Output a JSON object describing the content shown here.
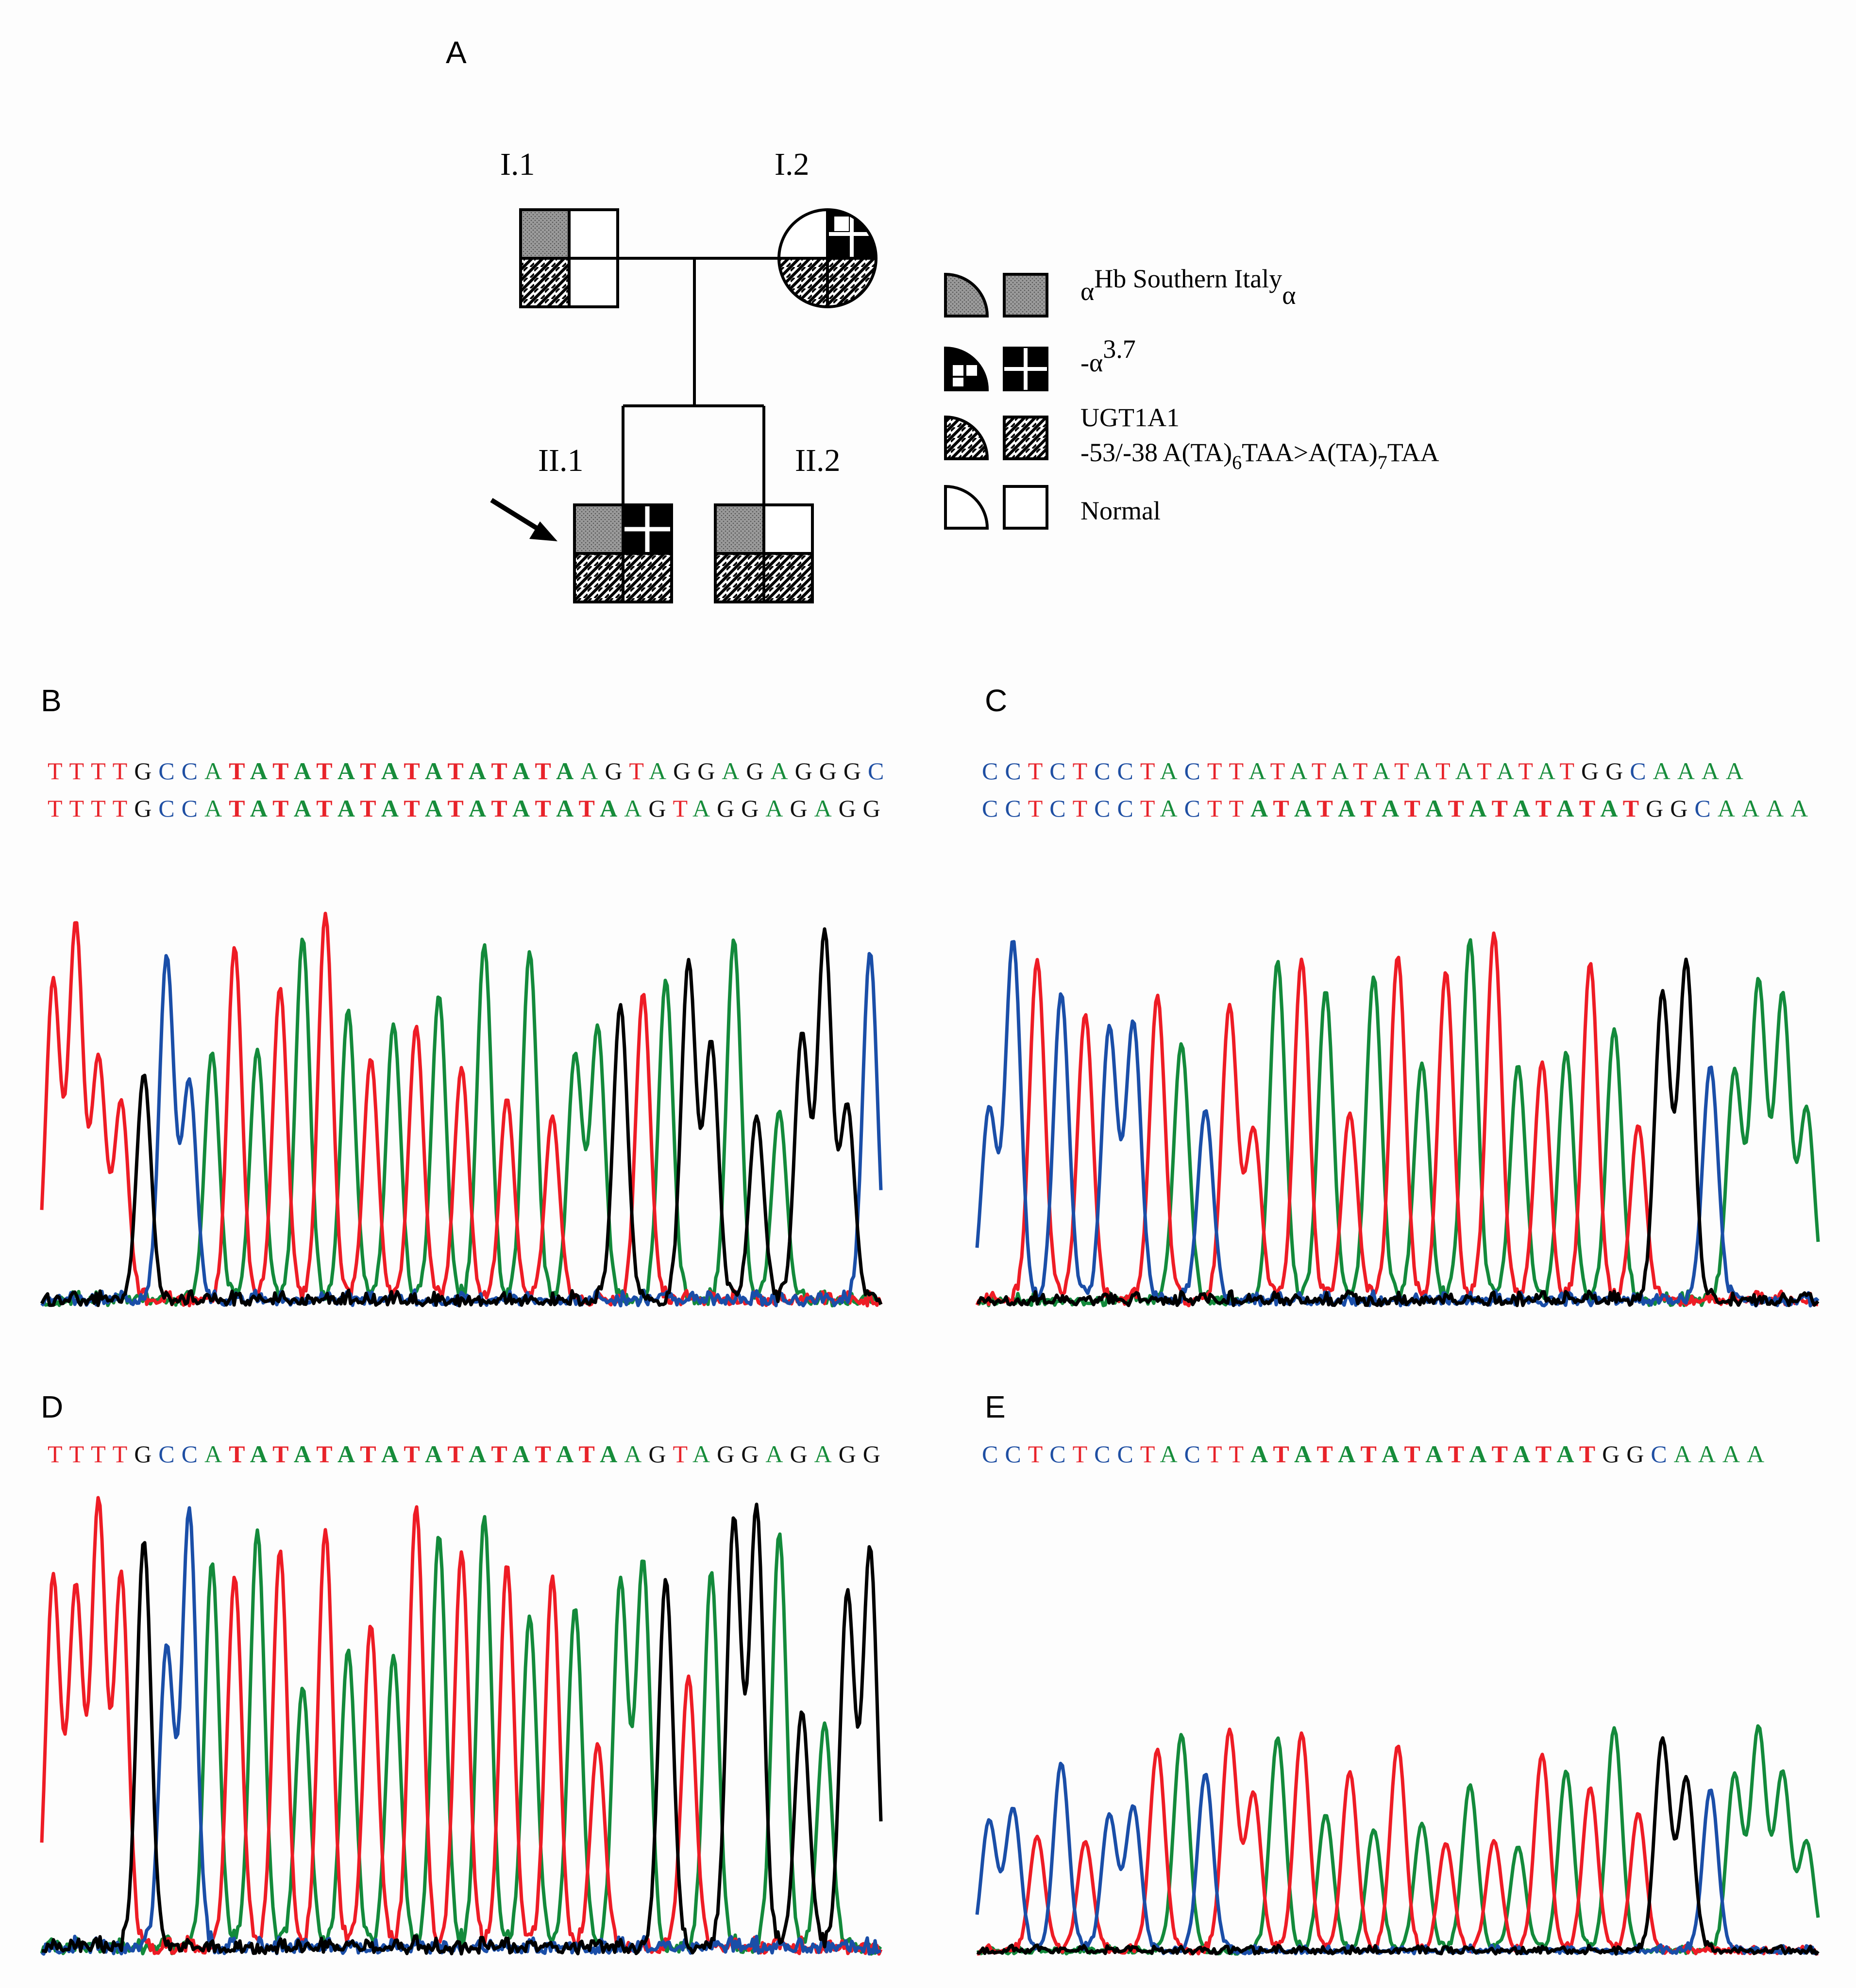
{
  "panels": {
    "a": "A",
    "b": "B",
    "c": "C",
    "d": "D",
    "e": "E"
  },
  "pedigree": {
    "labels": {
      "i1": "I.1",
      "i2": "I.2",
      "ii1": "II.1",
      "ii2": "II.2"
    }
  },
  "legend": {
    "hb_prefix": "α",
    "hb_sup": "Hb Southern Italy",
    "hb_sub": "α",
    "alpha37_prefix": "-α",
    "alpha37_sup": "3.7",
    "ugt_line1": "UGT1A1",
    "ugt_line2_a": "-53/-38 A(TA)",
    "ugt_line2_sub1": "6",
    "ugt_line2_b": "TAA>A(TA)",
    "ugt_line2_sub2": "7",
    "ugt_line2_c": "TAA",
    "normal": "Normal"
  },
  "sequences": {
    "b1": "TTTTGCCATATATATATATATATAAGTAGGAGAGGGC",
    "b2": "TTTTGCCATATATATATATATATATAAGTAGGAGAGG",
    "c1": "CCTCTCCTACTTATATATATATATATATGGCAAAA",
    "c2": "CCTCTCCTACTTATATATATATATATATATGGCAAAA",
    "d1": "TTTTGCCATATATATATATATATATAAGTAGGAGAGG",
    "e1": "CCTCTCCTACTTATATATATATATATATGGCAAAA"
  },
  "colors": {
    "A": "#168c3a",
    "T": "#e8232a",
    "C": "#1f4fa3",
    "G": "#111111"
  }
}
